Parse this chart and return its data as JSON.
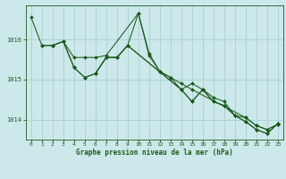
{
  "bg_color": "#cce8ea",
  "line_color": "#1a5c1a",
  "grid_color": "#aacfcf",
  "axis_color": "#1a5c1a",
  "title": "Graphe pression niveau de la mer (hPa)",
  "title_color": "#1a5c1a",
  "xlim": [
    -0.5,
    23.5
  ],
  "ylim": [
    1013.5,
    1016.85
  ],
  "yticks": [
    1014,
    1015,
    1016
  ],
  "xticks": [
    0,
    1,
    2,
    3,
    4,
    5,
    6,
    7,
    8,
    9,
    10,
    11,
    12,
    13,
    14,
    15,
    16,
    17,
    18,
    19,
    20,
    21,
    22,
    23
  ],
  "series": [
    {
      "x": [
        0,
        1,
        2,
        3,
        4,
        5,
        6,
        7,
        10,
        11,
        12,
        13,
        14,
        15,
        20,
        21,
        22,
        23
      ],
      "y": [
        1016.55,
        1015.85,
        1015.85,
        1015.95,
        1015.55,
        1015.55,
        1015.55,
        1015.6,
        1016.65,
        1015.65,
        1015.2,
        1015.05,
        1014.9,
        1014.75,
        1014.05,
        1013.85,
        1013.75,
        1013.88
      ]
    },
    {
      "x": [
        1,
        2,
        3,
        4,
        5,
        6,
        7,
        8,
        9,
        10,
        11,
        12,
        13,
        14,
        15,
        16,
        17,
        18,
        19,
        20,
        21,
        22,
        23
      ],
      "y": [
        1015.85,
        1015.85,
        1015.95,
        1015.3,
        1015.05,
        1015.15,
        1015.55,
        1015.55,
        1015.85,
        1016.65,
        1015.6,
        1015.2,
        1015.05,
        1014.75,
        1014.9,
        1014.75,
        1014.55,
        1014.45,
        1014.1,
        1014.05,
        1013.85,
        1013.75,
        1013.88
      ]
    },
    {
      "x": [
        2,
        3,
        4,
        5,
        6,
        7,
        8,
        9,
        14,
        15,
        16,
        17,
        18,
        19,
        20,
        21,
        22,
        23
      ],
      "y": [
        1015.85,
        1015.95,
        1015.3,
        1015.05,
        1015.15,
        1015.55,
        1015.55,
        1015.85,
        1014.75,
        1014.45,
        1014.75,
        1014.45,
        1014.35,
        1014.1,
        1013.95,
        1013.75,
        1013.65,
        1013.9
      ]
    },
    {
      "x": [
        6,
        7,
        8,
        9,
        14,
        15,
        16,
        17,
        18,
        19,
        20,
        21,
        22,
        23
      ],
      "y": [
        1015.15,
        1015.55,
        1015.55,
        1015.85,
        1014.75,
        1014.45,
        1014.75,
        1014.45,
        1014.35,
        1014.1,
        1013.95,
        1013.75,
        1013.65,
        1013.9
      ]
    }
  ]
}
